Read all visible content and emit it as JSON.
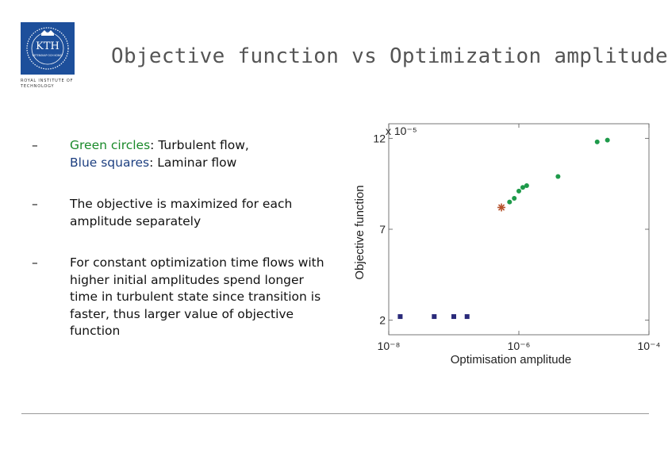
{
  "logo": {
    "text": "KTH",
    "subtext": "VETENSKAP OCH KONST",
    "institution": "ROYAL INSTITUTE OF TECHNOLOGY",
    "color": "#1d4f9b"
  },
  "title": "Objective function vs Optimization amplitude",
  "bullets": [
    {
      "dash": "–",
      "parts": [
        {
          "text": "Green circles",
          "color": "green"
        },
        {
          "text": ": Turbulent flow,",
          "color": "black"
        }
      ],
      "parts2": [
        {
          "text": "Blue squares",
          "color": "blue"
        },
        {
          "text": ": Laminar flow",
          "color": "black"
        }
      ]
    },
    {
      "dash": "–",
      "text": "The objective is maximized for each amplitude separately"
    },
    {
      "dash": "–",
      "text": "For constant optimization time flows with higher initial amplitudes spend longer time in turbulent state since transition is faster, thus larger value of objective function"
    }
  ],
  "colors": {
    "green": "#1a8a2a",
    "blue": "#1d3f80",
    "marker_green": "#1e9a4a",
    "marker_blue": "#2a2a7a",
    "marker_star": "#b5502a"
  },
  "chart_data": {
    "type": "scatter",
    "xlabel": "Optimisation amplitude",
    "ylabel": "Objective function",
    "y_multiplier": "x 10⁻⁵",
    "x_scale": "log",
    "xlim": [
      1e-08,
      0.0001
    ],
    "ylim": [
      1.2,
      12.8
    ],
    "x_ticks": [
      {
        "value": 1e-08,
        "label": "10⁻⁸"
      },
      {
        "value": 1e-06,
        "label": "10⁻⁶"
      },
      {
        "value": 0.0001,
        "label": "10⁻⁴"
      }
    ],
    "y_ticks": [
      {
        "value": 2,
        "label": "2"
      },
      {
        "value": 7,
        "label": "7"
      },
      {
        "value": 12,
        "label": "12"
      }
    ],
    "grid": false,
    "series": [
      {
        "marker": "circle",
        "color": "#1e9a4a",
        "points": [
          [
            7.2e-07,
            8.5
          ],
          [
            8.5e-07,
            8.7
          ],
          [
            1e-06,
            9.1
          ],
          [
            1.15e-06,
            9.3
          ],
          [
            1.32e-06,
            9.4
          ],
          [
            4e-06,
            9.9
          ],
          [
            1.6e-05,
            11.8
          ],
          [
            2.3e-05,
            11.9
          ]
        ]
      },
      {
        "marker": "square",
        "color": "#2a2a7a",
        "points": [
          [
            1.5e-08,
            2.2
          ],
          [
            5e-08,
            2.2
          ],
          [
            1e-07,
            2.2
          ],
          [
            1.6e-07,
            2.2
          ]
        ]
      },
      {
        "marker": "star",
        "color": "#b5502a",
        "points": [
          [
            5.4e-07,
            8.2
          ]
        ]
      }
    ]
  }
}
